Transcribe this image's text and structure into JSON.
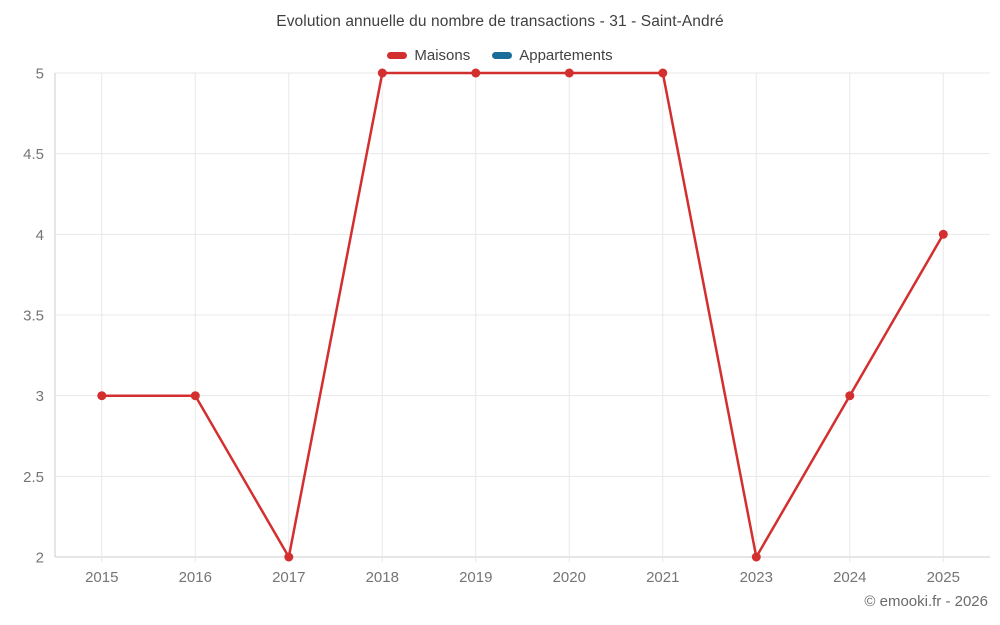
{
  "chart": {
    "title": "Evolution annuelle du nombre de transactions - 31 - Saint-André",
    "legend": [
      {
        "label": "Maisons",
        "color": "#d32f2f"
      },
      {
        "label": "Appartements",
        "color": "#1a6d99"
      }
    ]
  },
  "footer": {
    "copyright": "© emooki.fr - 2026"
  },
  "chart_data": {
    "type": "line",
    "title": "Evolution annuelle du nombre de transactions - 31 - Saint-André",
    "categories": [
      "2015",
      "2016",
      "2017",
      "2018",
      "2019",
      "2020",
      "2021",
      "2023",
      "2024",
      "2025"
    ],
    "series": [
      {
        "name": "Maisons",
        "color": "#d32f2f",
        "values": [
          3,
          3,
          2,
          5,
          5,
          5,
          5,
          2,
          3,
          4
        ]
      },
      {
        "name": "Appartements",
        "color": "#1a6d99",
        "values": []
      }
    ],
    "xlabel": "",
    "ylabel": "",
    "ylim": [
      2,
      5
    ],
    "yticks": [
      2,
      2.5,
      3,
      3.5,
      4,
      4.5,
      5
    ],
    "grid": true,
    "legend_position": "top",
    "marker": "circle"
  }
}
